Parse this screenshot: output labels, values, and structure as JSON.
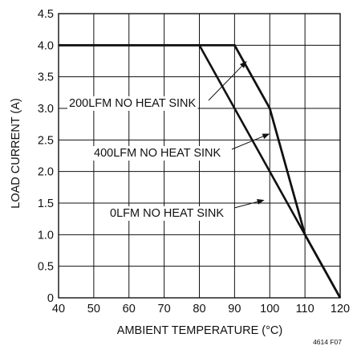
{
  "chart_data": {
    "type": "line",
    "xlabel": "AMBIENT TEMPERATURE (°C)",
    "ylabel": "LOAD CURRENT (A)",
    "xlim": [
      40,
      120
    ],
    "ylim": [
      0,
      4.5
    ],
    "x_ticks": [
      "40",
      "50",
      "60",
      "70",
      "80",
      "90",
      "100",
      "110",
      "120"
    ],
    "y_ticks": [
      "0",
      "0.5",
      "1.0",
      "1.5",
      "2.0",
      "2.5",
      "3.0",
      "3.5",
      "4.0",
      "4.5"
    ],
    "grid": true,
    "series": [
      {
        "name": "200LFM NO HEAT SINK",
        "x": [
          40,
          90,
          100,
          110,
          120
        ],
        "y": [
          4.0,
          4.0,
          3.0,
          1.0,
          0
        ]
      },
      {
        "name": "400LFM NO HEAT SINK",
        "x": [
          40,
          90,
          100,
          110,
          120
        ],
        "y": [
          4.0,
          4.0,
          3.0,
          1.0,
          0
        ]
      },
      {
        "name": "0LFM NO HEAT SINK",
        "x": [
          40,
          80,
          120
        ],
        "y": [
          4.0,
          4.0,
          0
        ]
      }
    ],
    "annotations": [
      {
        "text": "200LFM NO HEAT SINK",
        "arrow_to": [
          93.5,
          3.75
        ]
      },
      {
        "text": "400LFM NO HEAT SINK",
        "arrow_to": [
          100,
          2.6
        ]
      },
      {
        "text": "0LFM NO HEAT SINK",
        "arrow_to": [
          98.5,
          1.55
        ]
      }
    ],
    "figure_id": "4614 F07"
  }
}
